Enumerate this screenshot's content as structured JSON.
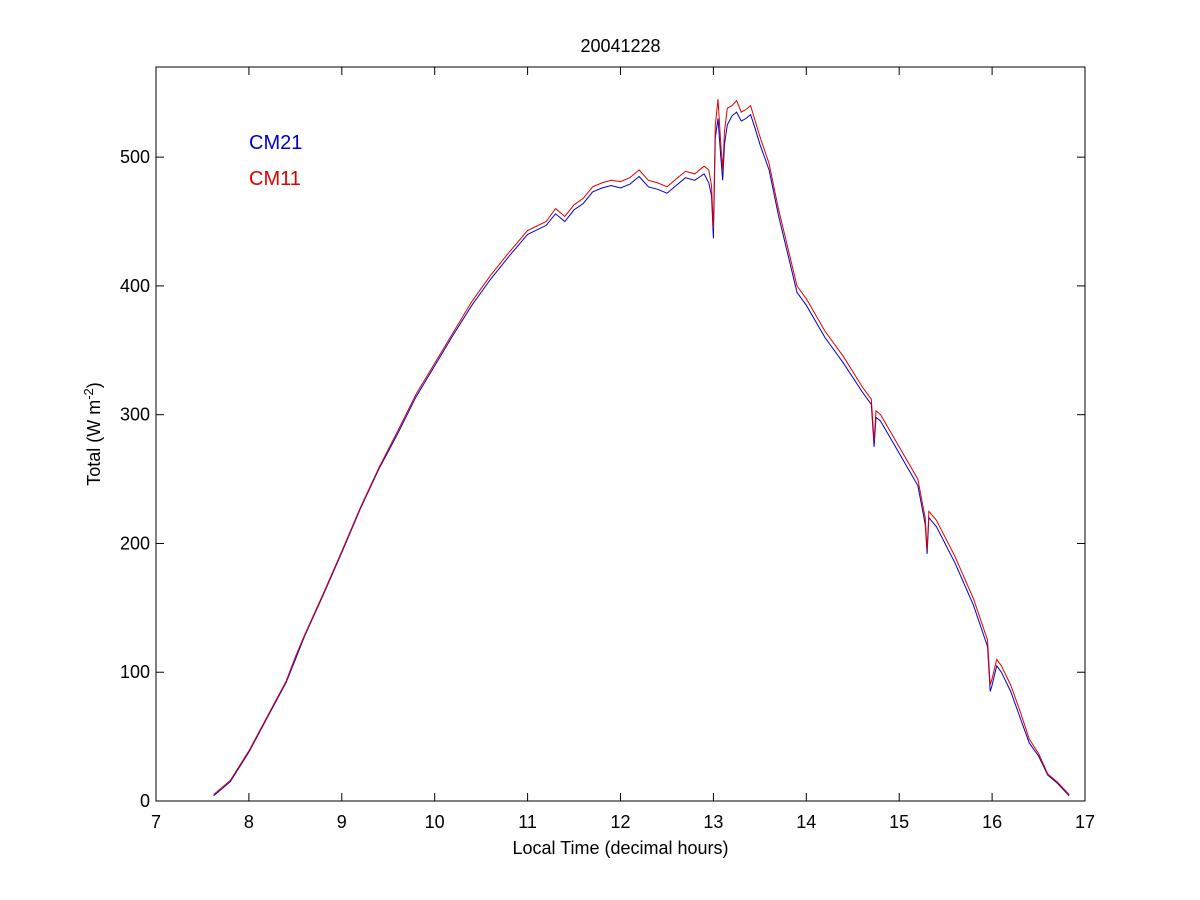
{
  "chart_data": {
    "type": "line",
    "title": "20041228",
    "xlabel": "Local Time (decimal hours)",
    "ylabel": {
      "prefix": "Total (W m",
      "superscript": "-2",
      "suffix": ")"
    },
    "xlim": [
      7,
      17
    ],
    "ylim": [
      0,
      570
    ],
    "xticks": [
      7,
      8,
      9,
      10,
      11,
      12,
      13,
      14,
      15,
      16,
      17
    ],
    "yticks": [
      0,
      100,
      200,
      300,
      400,
      500
    ],
    "grid": false,
    "legend_position": "top-left",
    "series": [
      {
        "name": "CM21",
        "color": "#0000cc",
        "points": [
          [
            7.62,
            4
          ],
          [
            7.8,
            15
          ],
          [
            8.0,
            38
          ],
          [
            8.2,
            65
          ],
          [
            8.4,
            92
          ],
          [
            8.5,
            110
          ],
          [
            8.6,
            128
          ],
          [
            8.8,
            160
          ],
          [
            9.0,
            193
          ],
          [
            9.2,
            227
          ],
          [
            9.4,
            258
          ],
          [
            9.6,
            285
          ],
          [
            9.8,
            314
          ],
          [
            10.0,
            338
          ],
          [
            10.2,
            362
          ],
          [
            10.4,
            385
          ],
          [
            10.6,
            405
          ],
          [
            10.8,
            423
          ],
          [
            11.0,
            440
          ],
          [
            11.2,
            447
          ],
          [
            11.3,
            456
          ],
          [
            11.4,
            450
          ],
          [
            11.5,
            459
          ],
          [
            11.6,
            464
          ],
          [
            11.7,
            473
          ],
          [
            11.8,
            476
          ],
          [
            11.9,
            478
          ],
          [
            12.0,
            476
          ],
          [
            12.1,
            479
          ],
          [
            12.2,
            485
          ],
          [
            12.3,
            477
          ],
          [
            12.4,
            475
          ],
          [
            12.5,
            472
          ],
          [
            12.6,
            478
          ],
          [
            12.7,
            484
          ],
          [
            12.8,
            482
          ],
          [
            12.9,
            487
          ],
          [
            12.95,
            480
          ],
          [
            12.98,
            470
          ],
          [
            13.0,
            437
          ],
          [
            13.02,
            515
          ],
          [
            13.05,
            530
          ],
          [
            13.08,
            500
          ],
          [
            13.1,
            482
          ],
          [
            13.12,
            510
          ],
          [
            13.15,
            525
          ],
          [
            13.2,
            532
          ],
          [
            13.25,
            535
          ],
          [
            13.3,
            528
          ],
          [
            13.35,
            530
          ],
          [
            13.4,
            533
          ],
          [
            13.45,
            522
          ],
          [
            13.5,
            510
          ],
          [
            13.6,
            490
          ],
          [
            13.7,
            455
          ],
          [
            13.8,
            425
          ],
          [
            13.9,
            395
          ],
          [
            14.0,
            385
          ],
          [
            14.2,
            360
          ],
          [
            14.4,
            340
          ],
          [
            14.6,
            318
          ],
          [
            14.7,
            308
          ],
          [
            14.73,
            275
          ],
          [
            14.75,
            298
          ],
          [
            14.8,
            295
          ],
          [
            15.0,
            270
          ],
          [
            15.2,
            245
          ],
          [
            15.28,
            215
          ],
          [
            15.3,
            192
          ],
          [
            15.32,
            220
          ],
          [
            15.4,
            213
          ],
          [
            15.6,
            185
          ],
          [
            15.8,
            152
          ],
          [
            15.95,
            120
          ],
          [
            15.98,
            85
          ],
          [
            16.0,
            90
          ],
          [
            16.05,
            105
          ],
          [
            16.1,
            100
          ],
          [
            16.2,
            85
          ],
          [
            16.3,
            65
          ],
          [
            16.4,
            45
          ],
          [
            16.5,
            35
          ],
          [
            16.6,
            20
          ],
          [
            16.7,
            14
          ],
          [
            16.83,
            4
          ]
        ]
      },
      {
        "name": "CM11",
        "color": "#dd0000",
        "points": [
          [
            7.62,
            5
          ],
          [
            7.8,
            16
          ],
          [
            8.0,
            39
          ],
          [
            8.2,
            66
          ],
          [
            8.4,
            93
          ],
          [
            8.5,
            112
          ],
          [
            8.6,
            129
          ],
          [
            8.8,
            161
          ],
          [
            9.0,
            194
          ],
          [
            9.2,
            228
          ],
          [
            9.4,
            259
          ],
          [
            9.6,
            287
          ],
          [
            9.8,
            316
          ],
          [
            10.0,
            340
          ],
          [
            10.2,
            364
          ],
          [
            10.4,
            388
          ],
          [
            10.6,
            408
          ],
          [
            10.8,
            426
          ],
          [
            11.0,
            443
          ],
          [
            11.2,
            450
          ],
          [
            11.3,
            460
          ],
          [
            11.4,
            454
          ],
          [
            11.5,
            463
          ],
          [
            11.6,
            468
          ],
          [
            11.7,
            477
          ],
          [
            11.8,
            480
          ],
          [
            11.9,
            482
          ],
          [
            12.0,
            481
          ],
          [
            12.1,
            484
          ],
          [
            12.2,
            490
          ],
          [
            12.3,
            482
          ],
          [
            12.4,
            480
          ],
          [
            12.5,
            477
          ],
          [
            12.6,
            483
          ],
          [
            12.7,
            489
          ],
          [
            12.8,
            487
          ],
          [
            12.9,
            493
          ],
          [
            12.95,
            490
          ],
          [
            12.98,
            478
          ],
          [
            13.0,
            445
          ],
          [
            13.02,
            525
          ],
          [
            13.05,
            545
          ],
          [
            13.08,
            510
          ],
          [
            13.1,
            490
          ],
          [
            13.12,
            520
          ],
          [
            13.15,
            538
          ],
          [
            13.2,
            540
          ],
          [
            13.25,
            544
          ],
          [
            13.3,
            535
          ],
          [
            13.35,
            537
          ],
          [
            13.4,
            540
          ],
          [
            13.45,
            528
          ],
          [
            13.5,
            516
          ],
          [
            13.6,
            495
          ],
          [
            13.7,
            460
          ],
          [
            13.8,
            430
          ],
          [
            13.9,
            400
          ],
          [
            14.0,
            390
          ],
          [
            14.2,
            365
          ],
          [
            14.4,
            345
          ],
          [
            14.6,
            322
          ],
          [
            14.7,
            312
          ],
          [
            14.73,
            280
          ],
          [
            14.75,
            303
          ],
          [
            14.8,
            300
          ],
          [
            15.0,
            275
          ],
          [
            15.2,
            250
          ],
          [
            15.28,
            220
          ],
          [
            15.3,
            195
          ],
          [
            15.32,
            225
          ],
          [
            15.4,
            218
          ],
          [
            15.6,
            190
          ],
          [
            15.8,
            157
          ],
          [
            15.95,
            125
          ],
          [
            15.98,
            90
          ],
          [
            16.0,
            95
          ],
          [
            16.05,
            110
          ],
          [
            16.1,
            105
          ],
          [
            16.2,
            90
          ],
          [
            16.3,
            70
          ],
          [
            16.4,
            48
          ],
          [
            16.5,
            37
          ],
          [
            16.6,
            21
          ],
          [
            16.7,
            15
          ],
          [
            16.83,
            5
          ]
        ]
      }
    ]
  }
}
